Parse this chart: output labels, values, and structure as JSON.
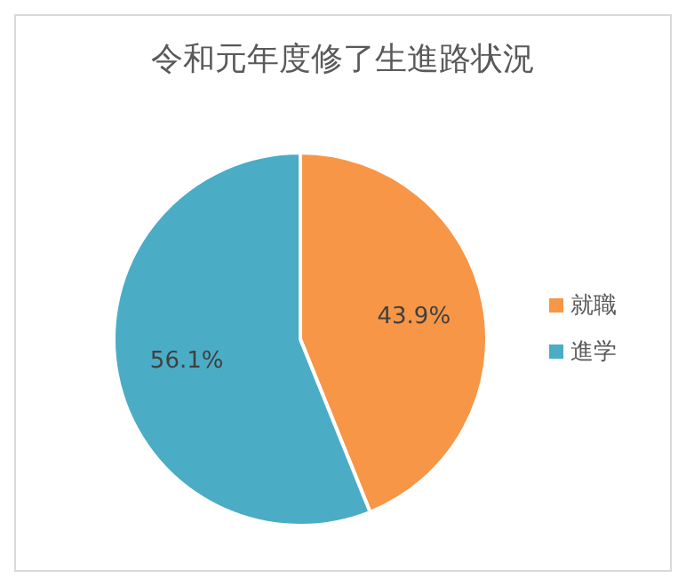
{
  "chart_data": {
    "type": "pie",
    "title": "令和元年度修了生進路状況",
    "categories": [
      "就職",
      "進学"
    ],
    "values": [
      43.9,
      56.1
    ],
    "value_labels": [
      "43.9%",
      "56.1%"
    ],
    "colors": [
      "#f79646",
      "#4bacc6"
    ],
    "legend": "right"
  }
}
